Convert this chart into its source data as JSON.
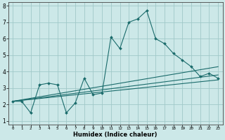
{
  "xlabel": "Humidex (Indice chaleur)",
  "bg_color": "#cce8e8",
  "grid_color": "#a0c8c8",
  "line_color": "#1a6b6b",
  "xlim": [
    -0.5,
    23.5
  ],
  "ylim": [
    0.8,
    8.2
  ],
  "xticks": [
    0,
    1,
    2,
    3,
    4,
    5,
    6,
    7,
    8,
    9,
    10,
    11,
    12,
    13,
    14,
    15,
    16,
    17,
    18,
    19,
    20,
    21,
    22,
    23
  ],
  "yticks": [
    1,
    2,
    3,
    4,
    5,
    6,
    7,
    8
  ],
  "series": [
    {
      "x": [
        0,
        1,
        2,
        3,
        4,
        5,
        6,
        7,
        8,
        9,
        10,
        11,
        12,
        13,
        14,
        15,
        16,
        17,
        18,
        19,
        20,
        21,
        22,
        23
      ],
      "y": [
        2.2,
        2.2,
        1.5,
        3.2,
        3.3,
        3.2,
        1.5,
        2.1,
        3.6,
        2.6,
        2.7,
        6.1,
        5.4,
        7.0,
        7.2,
        7.7,
        6.0,
        5.7,
        5.1,
        4.7,
        4.3,
        3.7,
        3.9,
        3.6
      ]
    },
    {
      "x": [
        0,
        23
      ],
      "y": [
        2.2,
        4.3
      ]
    },
    {
      "x": [
        0,
        23
      ],
      "y": [
        2.2,
        3.8
      ]
    },
    {
      "x": [
        0,
        23
      ],
      "y": [
        2.2,
        3.5
      ]
    }
  ]
}
